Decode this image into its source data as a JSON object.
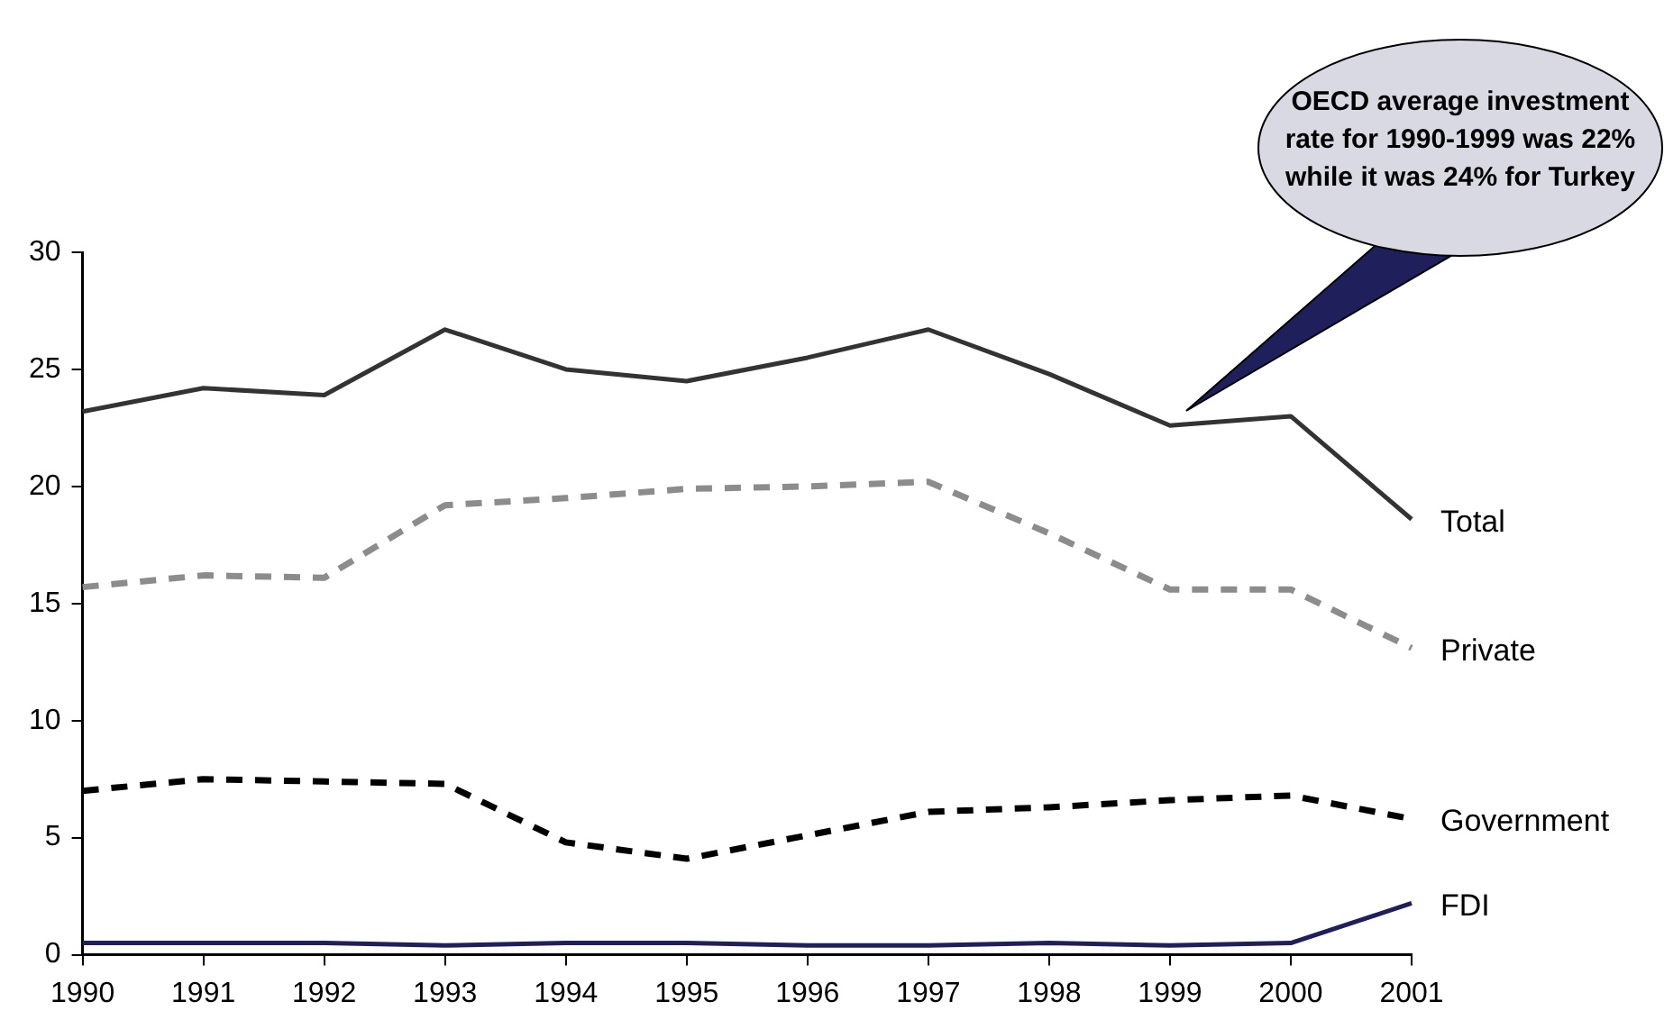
{
  "chart_data": {
    "type": "line",
    "categories": [
      "1990",
      "1991",
      "1992",
      "1993",
      "1994",
      "1995",
      "1996",
      "1997",
      "1998",
      "1999",
      "2000",
      "2001"
    ],
    "series": [
      {
        "name": "Total",
        "color": "#333333",
        "line_style": "solid",
        "values": [
          23.2,
          24.2,
          23.9,
          26.7,
          25.0,
          24.5,
          25.5,
          26.7,
          24.8,
          22.6,
          23.0,
          18.6
        ]
      },
      {
        "name": "Private",
        "color": "#8c8c8c",
        "line_style": "dashed",
        "values": [
          15.7,
          16.2,
          16.1,
          19.2,
          19.5,
          19.9,
          20.0,
          20.2,
          18.0,
          15.6,
          15.6,
          13.1
        ]
      },
      {
        "name": "Government",
        "color": "#000000",
        "line_style": "dashed",
        "values": [
          7.0,
          7.5,
          7.4,
          7.3,
          4.8,
          4.1,
          5.1,
          6.1,
          6.3,
          6.6,
          6.8,
          5.8
        ]
      },
      {
        "name": "FDI",
        "color": "#1f1f5c",
        "line_style": "solid",
        "values": [
          0.5,
          0.5,
          0.5,
          0.4,
          0.5,
          0.5,
          0.4,
          0.4,
          0.5,
          0.4,
          0.5,
          2.2
        ]
      }
    ],
    "ylim": [
      0,
      30
    ],
    "yticks": [
      0,
      5,
      10,
      15,
      20,
      25,
      30
    ],
    "grid": false,
    "legend": false,
    "marker": "none",
    "annotations": [
      "OECD average investment rate for 1990-1999 was 22% while it was 24% for Turkey"
    ]
  }
}
